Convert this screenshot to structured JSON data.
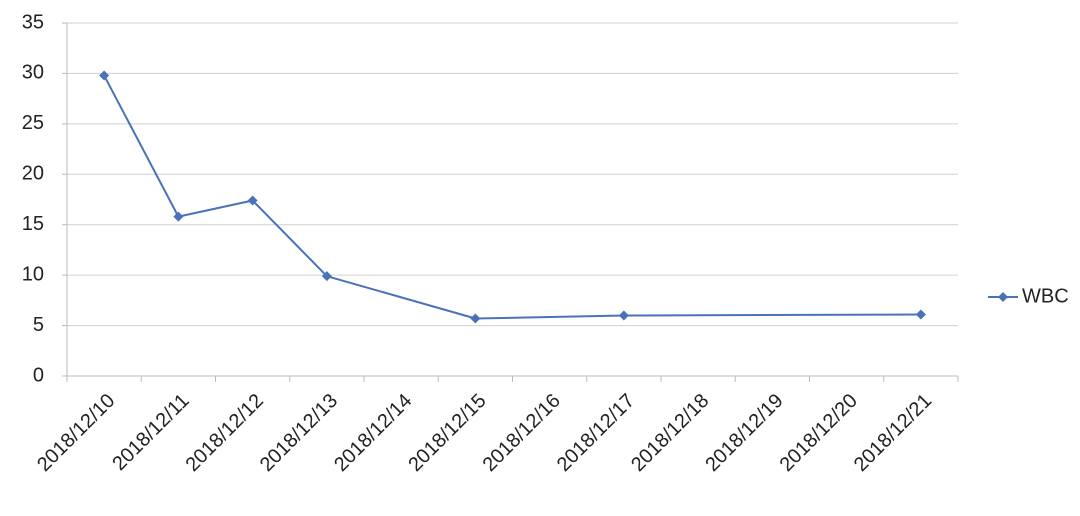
{
  "chart_data": {
    "type": "line",
    "categories": [
      "2018/12/10",
      "2018/12/11",
      "2018/12/12",
      "2018/12/13",
      "2018/12/14",
      "2018/12/15",
      "2018/12/16",
      "2018/12/17",
      "2018/12/18",
      "2018/12/19",
      "2018/12/20",
      "2018/12/21"
    ],
    "series": [
      {
        "name": "WBC",
        "color": "#4a72b8",
        "values": [
          29.8,
          15.8,
          17.4,
          9.9,
          null,
          5.7,
          null,
          6.0,
          null,
          null,
          null,
          6.1
        ]
      }
    ],
    "ylim": [
      0,
      35
    ],
    "yticks": [
      0,
      5,
      10,
      15,
      20,
      25,
      30,
      35
    ],
    "grid": true,
    "legend": "right"
  }
}
